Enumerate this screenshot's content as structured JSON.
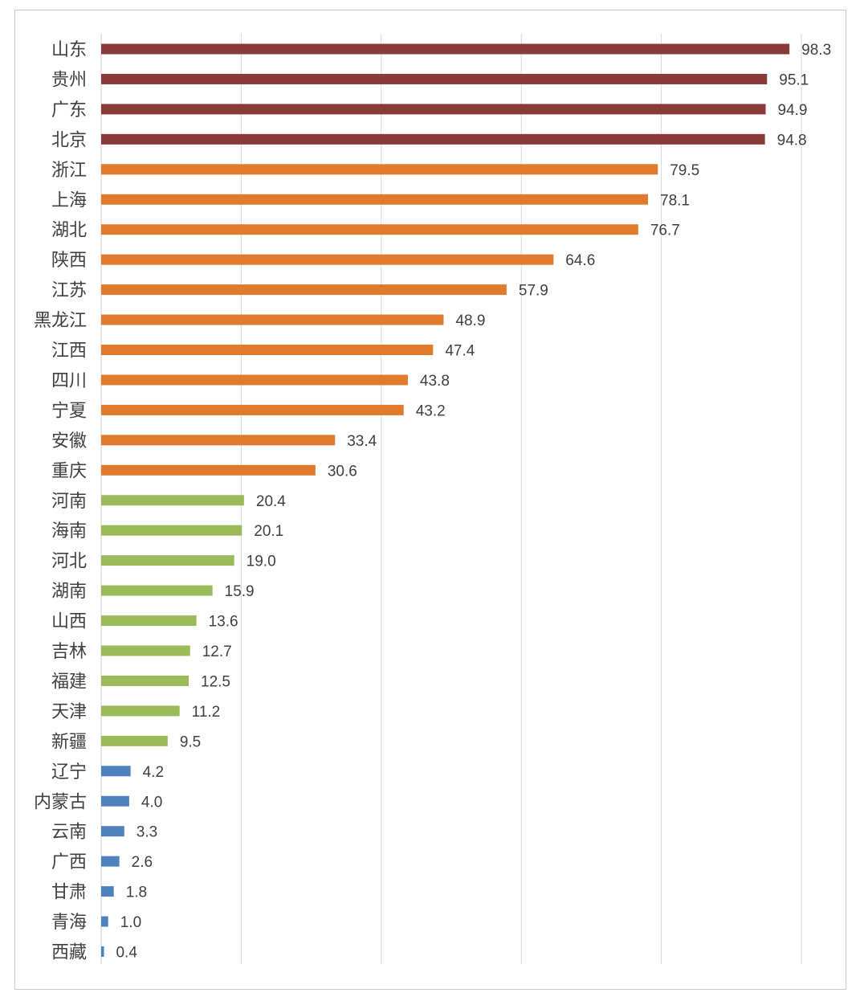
{
  "chart_data": {
    "type": "bar",
    "orientation": "horizontal",
    "categories": [
      "山东",
      "贵州",
      "广东",
      "北京",
      "浙江",
      "上海",
      "湖北",
      "陕西",
      "江苏",
      "黑龙江",
      "江西",
      "四川",
      "宁夏",
      "安徽",
      "重庆",
      "河南",
      "海南",
      "河北",
      "湖南",
      "山西",
      "吉林",
      "福建",
      "天津",
      "新疆",
      "辽宁",
      "内蒙古",
      "云南",
      "广西",
      "甘肃",
      "青海",
      "西藏"
    ],
    "values": [
      98.3,
      95.1,
      94.9,
      94.8,
      79.5,
      78.1,
      76.7,
      64.6,
      57.9,
      48.9,
      47.4,
      43.8,
      43.2,
      33.4,
      30.6,
      20.4,
      20.1,
      19.0,
      15.9,
      13.6,
      12.7,
      12.5,
      11.2,
      9.5,
      4.2,
      4.0,
      3.3,
      2.6,
      1.8,
      1.0,
      0.4
    ],
    "value_labels": [
      "98.3",
      "95.1",
      "94.9",
      "94.8",
      "79.5",
      "78.1",
      "76.7",
      "64.6",
      "57.9",
      "48.9",
      "47.4",
      "43.8",
      "43.2",
      "33.4",
      "30.6",
      "20.4",
      "20.1",
      "19.0",
      "15.9",
      "13.6",
      "12.7",
      "12.5",
      "11.2",
      "9.5",
      "4.2",
      "4.0",
      "3.3",
      "2.6",
      "1.8",
      "1.0",
      "0.4"
    ],
    "color_tiers": [
      {
        "min_rank": 0,
        "max_rank": 3,
        "color": "#8b3a3a"
      },
      {
        "min_rank": 4,
        "max_rank": 14,
        "color": "#e07b2e"
      },
      {
        "min_rank": 15,
        "max_rank": 23,
        "color": "#9bbb59"
      },
      {
        "min_rank": 24,
        "max_rank": 30,
        "color": "#4f81bd"
      }
    ],
    "xlim": [
      0,
      100
    ],
    "gridlines_at": [
      20,
      40,
      60,
      80,
      100
    ],
    "grid": true,
    "legend": "none"
  }
}
